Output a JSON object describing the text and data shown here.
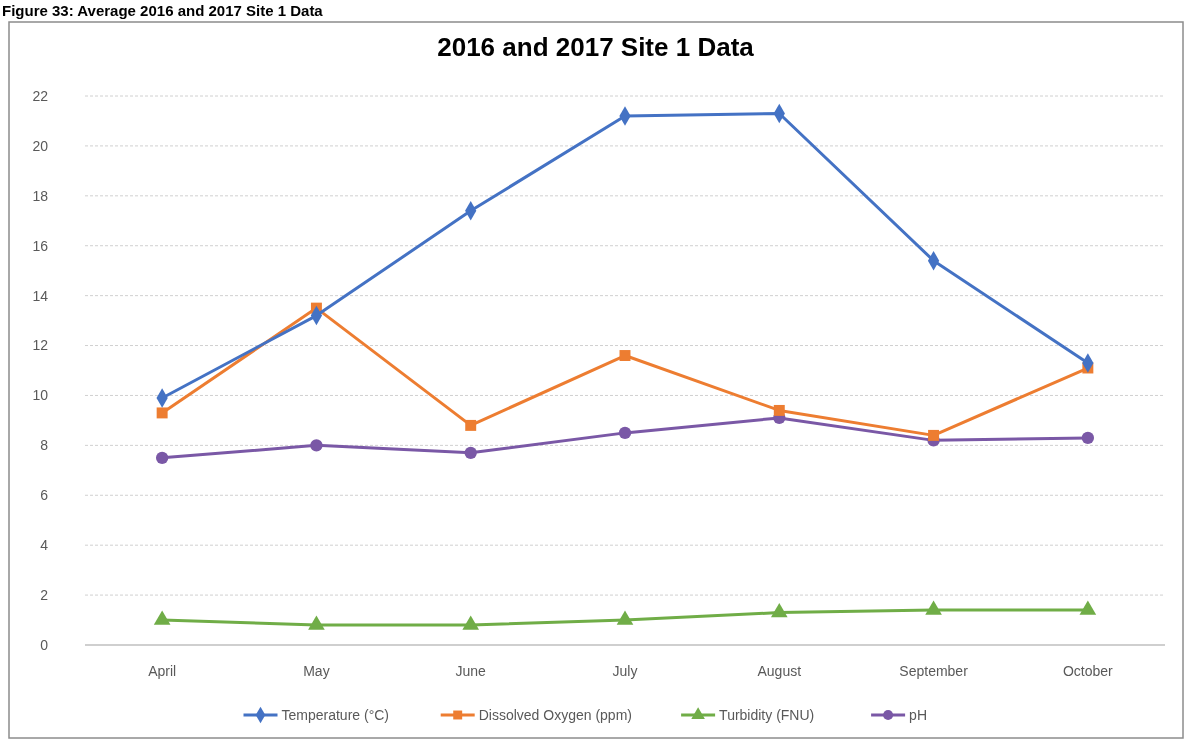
{
  "chart_data": {
    "type": "line",
    "title": "2016 and 2017 Site 1 Data",
    "annotations": [
      "Figure 33: Average 2016 and 2017 Site 1 Data"
    ],
    "categories": [
      "April",
      "May",
      "June",
      "July",
      "August",
      "September",
      "October"
    ],
    "series": [
      {
        "name": "Temperature (°C)",
        "color": "#4472c4",
        "marker": "diamond",
        "values": [
          9.9,
          13.2,
          17.4,
          21.2,
          21.3,
          15.4,
          11.3
        ]
      },
      {
        "name": "Dissolved Oxygen (ppm)",
        "color": "#ed7d31",
        "marker": "square",
        "values": [
          9.3,
          13.5,
          8.8,
          11.6,
          9.4,
          8.4,
          11.1
        ]
      },
      {
        "name": "Turbidity (FNU)",
        "color": "#70ad47",
        "marker": "triangle",
        "values": [
          1.0,
          0.8,
          0.8,
          1.0,
          1.3,
          1.4,
          1.4
        ]
      },
      {
        "name": "pH",
        "color": "#7a58a6",
        "marker": "circle",
        "values": [
          7.5,
          8.0,
          7.7,
          8.5,
          9.1,
          8.2,
          8.3
        ]
      }
    ],
    "ylim": [
      0,
      22
    ],
    "yticks": [
      0,
      2,
      4,
      6,
      8,
      10,
      12,
      14,
      16,
      18,
      20,
      22
    ],
    "grid": "y",
    "legend": "bottom"
  }
}
